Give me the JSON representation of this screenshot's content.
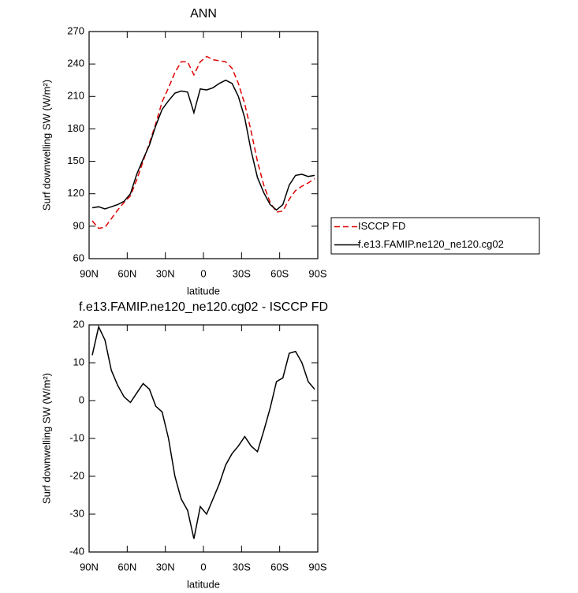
{
  "chart_data": [
    {
      "type": "line",
      "title": "ANN",
      "xlabel": "latitude",
      "ylabel": "Surf downwelling SW (W/m²)",
      "x": [
        87.5,
        82.5,
        77.5,
        72.5,
        67.5,
        62.5,
        57.5,
        52.5,
        47.5,
        42.5,
        37.5,
        32.5,
        27.5,
        22.5,
        17.5,
        12.5,
        7.5,
        2.5,
        -2.5,
        -7.5,
        -12.5,
        -17.5,
        -22.5,
        -27.5,
        -32.5,
        -37.5,
        -42.5,
        -47.5,
        -52.5,
        -57.5,
        -62.5,
        -67.5,
        -72.5,
        -77.5,
        -82.5,
        -87.5
      ],
      "xlim": [
        90,
        -90
      ],
      "xticks": [
        {
          "value": 90,
          "label": "90N"
        },
        {
          "value": 60,
          "label": "60N"
        },
        {
          "value": 30,
          "label": "30N"
        },
        0,
        {
          "value": -30,
          "label": "30S"
        },
        {
          "value": -60,
          "label": "60S"
        },
        {
          "value": -90,
          "label": "90S"
        }
      ],
      "ylim": [
        60,
        270
      ],
      "yticks": [
        60,
        90,
        120,
        150,
        180,
        210,
        240,
        270
      ],
      "legend": "right",
      "series": [
        {
          "name": "ISCCP FD",
          "color": "#e00000",
          "dashed": true,
          "values": [
            95,
            88,
            89,
            97,
            105,
            112,
            118,
            133,
            150,
            167,
            185,
            205,
            218,
            232,
            242,
            242,
            230,
            242,
            247,
            244,
            243,
            242,
            236,
            222,
            203,
            178,
            150,
            128,
            112,
            103,
            104,
            115,
            123,
            127,
            130,
            134
          ]
        },
        {
          "name": "f.e13.FAMIP.ne120_ne120.cg02",
          "color": "#000000",
          "dashed": false,
          "values": [
            107,
            108,
            106,
            108,
            110,
            113,
            120,
            138,
            152,
            165,
            183,
            198,
            206,
            213,
            215,
            214,
            195,
            217,
            216,
            218,
            222,
            225,
            222,
            210,
            190,
            160,
            135,
            121,
            110,
            105,
            110,
            128,
            137,
            138,
            136,
            137
          ]
        }
      ]
    },
    {
      "type": "line",
      "title": "f.e13.FAMIP.ne120_ne120.cg02 - ISCCP FD",
      "xlabel": "latitude",
      "ylabel": "Surf downwelling SW (W/m²)",
      "x": [
        87.5,
        82.5,
        77.5,
        72.5,
        67.5,
        62.5,
        57.5,
        52.5,
        47.5,
        42.5,
        37.5,
        32.5,
        27.5,
        22.5,
        17.5,
        12.5,
        7.5,
        2.5,
        -2.5,
        -7.5,
        -12.5,
        -17.5,
        -22.5,
        -27.5,
        -32.5,
        -37.5,
        -42.5,
        -47.5,
        -52.5,
        -57.5,
        -62.5,
        -67.5,
        -72.5,
        -77.5,
        -82.5,
        -87.5
      ],
      "xlim": [
        90,
        -90
      ],
      "xticks": [
        {
          "value": 90,
          "label": "90N"
        },
        {
          "value": 60,
          "label": "60N"
        },
        {
          "value": 30,
          "label": "30N"
        },
        0,
        {
          "value": -30,
          "label": "30S"
        },
        {
          "value": -60,
          "label": "60S"
        },
        {
          "value": -90,
          "label": "90S"
        }
      ],
      "ylim": [
        -40,
        20
      ],
      "yticks": [
        -40,
        -30,
        -20,
        -10,
        0,
        10,
        20
      ],
      "series": [
        {
          "color": "#000000",
          "dashed": false,
          "values": [
            12,
            19.5,
            16,
            8,
            4,
            1,
            -0.5,
            2,
            4.5,
            3,
            -1.5,
            -3,
            -10,
            -20,
            -26,
            -29,
            -36.5,
            -28,
            -30,
            -26,
            -22,
            -17,
            -14,
            -12,
            -9.5,
            -12,
            -13.5,
            -8,
            -2,
            5,
            6,
            12.5,
            13,
            10,
            5,
            3
          ]
        }
      ]
    }
  ]
}
